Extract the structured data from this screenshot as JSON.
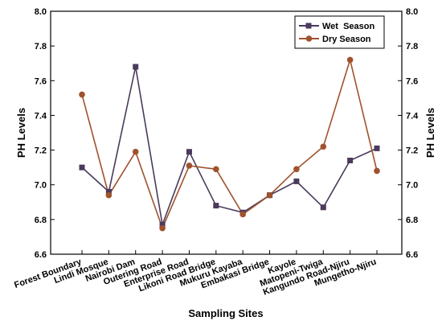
{
  "chart_data": {
    "type": "line",
    "xlabel": "Sampling Sites",
    "ylabel": "PH Levels",
    "ylabel_right": "PH Levels",
    "ylim": [
      6.6,
      8.0
    ],
    "yticks": [
      "6.6",
      "6.8",
      "7.0",
      "7.2",
      "7.4",
      "7.6",
      "7.8",
      "8.0"
    ],
    "legend_position": "top-right",
    "categories": [
      "Forest Boundary",
      "Lindi Mosque",
      "Nairobi Dam",
      "Outering Road",
      "Enterprise Road",
      "Likoni Road Bridge",
      "Mukuru Kayaba",
      "Embakasi Bridge",
      "Kayole",
      "Matopeni-Twiga",
      "Kangundo Road-Njiru",
      "Mungetho-Njiru"
    ],
    "series": [
      {
        "name": "Wet  Season",
        "color": "#4a3a5c",
        "marker": "square",
        "values": [
          7.1,
          6.96,
          7.68,
          6.77,
          7.19,
          6.88,
          6.84,
          6.94,
          7.02,
          6.87,
          7.14,
          7.21
        ]
      },
      {
        "name": "Dry Season",
        "color": "#a0522d",
        "marker": "circle",
        "values": [
          7.52,
          6.94,
          7.19,
          6.75,
          7.11,
          7.09,
          6.83,
          6.94,
          7.09,
          7.22,
          7.72,
          7.08
        ]
      }
    ]
  }
}
